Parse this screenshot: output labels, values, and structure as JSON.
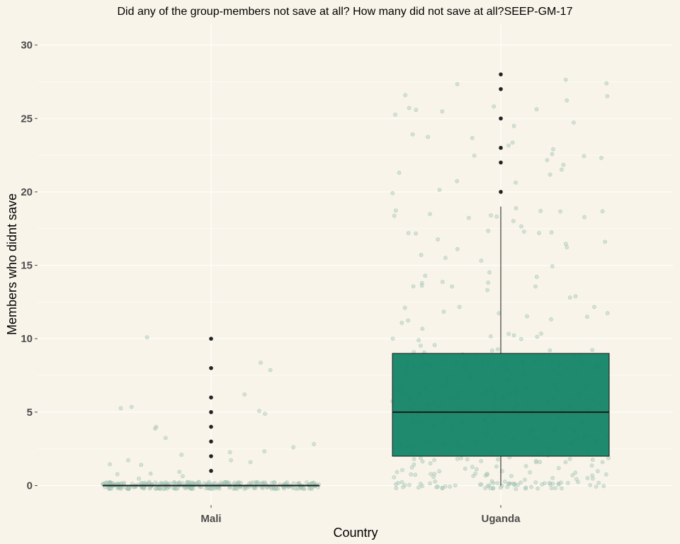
{
  "chart_data": {
    "type": "boxplot",
    "title": "Did any of the group-members not save at all? How many did not save at all?SEEP-GM-17",
    "xlabel": "Country",
    "ylabel": "Members who didnt save",
    "categories": [
      "Mali",
      "Uganda"
    ],
    "ylim": [
      -1.5,
      31.5
    ],
    "yticks": [
      0,
      5,
      10,
      15,
      20,
      25,
      30
    ],
    "grid": true,
    "legend": "none",
    "colors": {
      "background": "#f8f4e9",
      "box_fill": "#138467",
      "box_line": "#1a1a1a",
      "jitter": "#a9c9bb",
      "outlier": "#222222"
    },
    "boxes": [
      {
        "category": "Mali",
        "min": 0,
        "q1": 0,
        "median": 0,
        "q3": 0,
        "max": 0,
        "outliers": [
          1,
          2,
          3,
          4,
          5,
          6,
          8,
          10
        ]
      },
      {
        "category": "Uganda",
        "min": 0,
        "q1": 2,
        "median": 5,
        "q3": 9,
        "max": 19,
        "outliers": [
          20,
          22,
          23,
          25,
          27,
          28
        ]
      }
    ]
  }
}
